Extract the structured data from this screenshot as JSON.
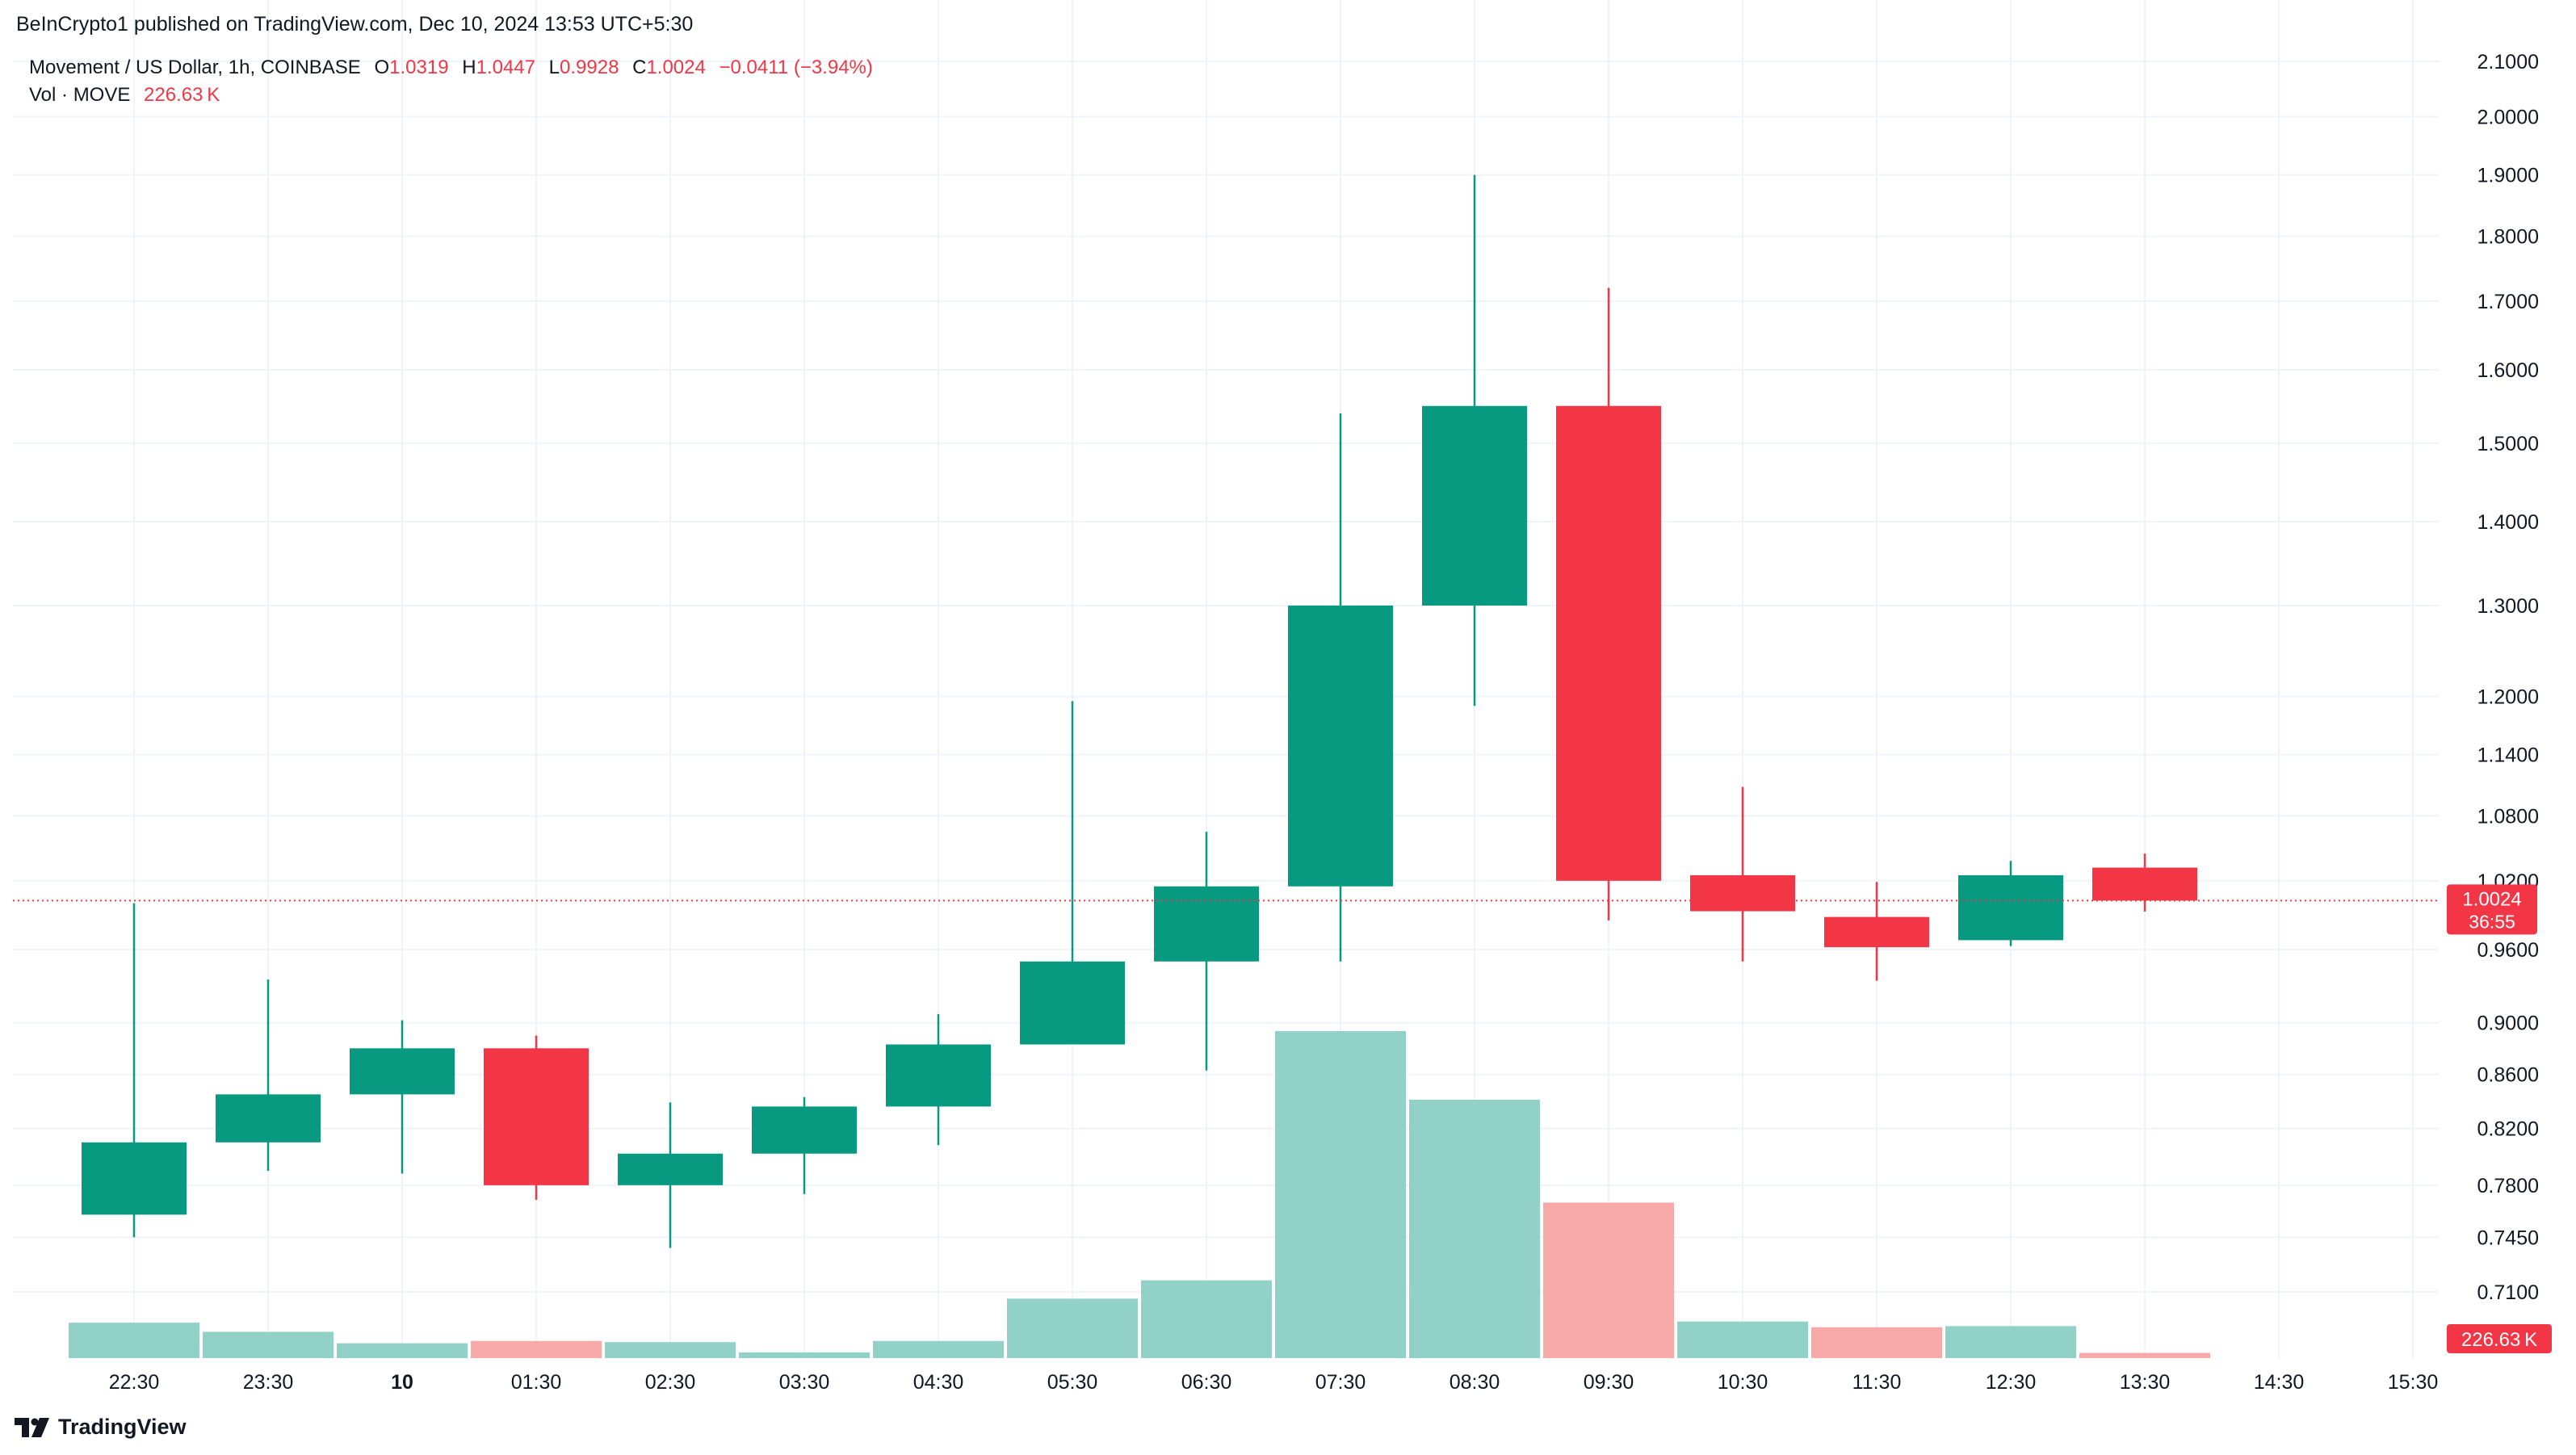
{
  "publisher_line": "BeInCrypto1 published on TradingView.com, Dec 10, 2024 13:53 UTC+5:30",
  "legend": {
    "symbol": "Movement / US Dollar, 1h, COINBASE",
    "o_label": "O",
    "o_value": "1.0319",
    "h_label": "H",
    "h_value": "1.0447",
    "l_label": "L",
    "l_value": "0.9928",
    "c_label": "C",
    "c_value": "1.0024",
    "change": "−0.0411 (−3.94%)",
    "vol_label": "Vol · MOVE",
    "vol_value": "226.63 K"
  },
  "footer": {
    "brand": "TradingView"
  },
  "colors": {
    "up": "#089981",
    "down": "#f23645",
    "vol_up": "#92d1c8",
    "vol_down": "#f7a9a7",
    "grid": "#f0f3fa",
    "text": "#131722"
  },
  "chart_data": {
    "type": "candlestick",
    "symbol": "Movement / US Dollar",
    "interval": "1h",
    "exchange": "COINBASE",
    "y_scale": "log",
    "y_ticks": [
      "2.1000",
      "2.0000",
      "1.9000",
      "1.8000",
      "1.7000",
      "1.6000",
      "1.5000",
      "1.4000",
      "1.3000",
      "1.2000",
      "1.1400",
      "1.0800",
      "1.0200",
      "0.9600",
      "0.9000",
      "0.8600",
      "0.8200",
      "0.7800",
      "0.7450",
      "0.7100"
    ],
    "x_ticks": [
      "22:30",
      "23:30",
      "10",
      "01:30",
      "02:30",
      "03:30",
      "04:30",
      "05:30",
      "06:30",
      "07:30",
      "08:30",
      "09:30",
      "10:30",
      "11:30",
      "12:30",
      "13:30",
      "14:30",
      "15:30"
    ],
    "bold_x_tick": "10",
    "candles": [
      {
        "time": "22:30",
        "open": 0.76,
        "high": 1.0,
        "low": 0.745,
        "close": 0.81
      },
      {
        "time": "23:30",
        "open": 0.81,
        "high": 0.935,
        "low": 0.79,
        "close": 0.845
      },
      {
        "time": "00:30",
        "open": 0.845,
        "high": 0.902,
        "low": 0.788,
        "close": 0.88
      },
      {
        "time": "01:30",
        "open": 0.88,
        "high": 0.89,
        "low": 0.77,
        "close": 0.78
      },
      {
        "time": "02:30",
        "open": 0.78,
        "high": 0.839,
        "low": 0.738,
        "close": 0.802
      },
      {
        "time": "03:30",
        "open": 0.802,
        "high": 0.843,
        "low": 0.774,
        "close": 0.836
      },
      {
        "time": "04:30",
        "open": 0.836,
        "high": 0.907,
        "low": 0.808,
        "close": 0.883
      },
      {
        "time": "05:30",
        "open": 0.883,
        "high": 1.195,
        "low": 0.883,
        "close": 0.95
      },
      {
        "time": "06:30",
        "open": 0.95,
        "high": 1.065,
        "low": 0.863,
        "close": 1.015
      },
      {
        "time": "07:30",
        "open": 1.015,
        "high": 1.54,
        "low": 0.95,
        "close": 1.3
      },
      {
        "time": "08:30",
        "open": 1.3,
        "high": 1.9,
        "low": 1.19,
        "close": 1.55
      },
      {
        "time": "09:30",
        "open": 1.55,
        "high": 1.72,
        "low": 0.985,
        "close": 1.02
      },
      {
        "time": "10:30",
        "open": 1.025,
        "high": 1.108,
        "low": 0.95,
        "close": 0.993
      },
      {
        "time": "11:30",
        "open": 0.988,
        "high": 1.019,
        "low": 0.934,
        "close": 0.962
      },
      {
        "time": "12:30",
        "open": 0.968,
        "high": 1.038,
        "low": 0.963,
        "close": 1.025
      },
      {
        "time": "13:30",
        "open": 1.0319,
        "high": 1.0447,
        "low": 0.9928,
        "close": 1.0024
      }
    ],
    "volume": {
      "max": 14300000,
      "values": [
        {
          "time": "22:30",
          "value": 1550000,
          "dir": "up"
        },
        {
          "time": "23:30",
          "value": 1150000,
          "dir": "up"
        },
        {
          "time": "00:30",
          "value": 650000,
          "dir": "up"
        },
        {
          "time": "01:30",
          "value": 750000,
          "dir": "down"
        },
        {
          "time": "02:30",
          "value": 700000,
          "dir": "up"
        },
        {
          "time": "03:30",
          "value": 250000,
          "dir": "up"
        },
        {
          "time": "04:30",
          "value": 750000,
          "dir": "up"
        },
        {
          "time": "05:30",
          "value": 2600000,
          "dir": "up"
        },
        {
          "time": "06:30",
          "value": 3400000,
          "dir": "up"
        },
        {
          "time": "07:30",
          "value": 14300000,
          "dir": "up"
        },
        {
          "time": "08:30",
          "value": 11300000,
          "dir": "up"
        },
        {
          "time": "09:30",
          "value": 6800000,
          "dir": "down"
        },
        {
          "time": "10:30",
          "value": 1600000,
          "dir": "up"
        },
        {
          "time": "11:30",
          "value": 1350000,
          "dir": "down"
        },
        {
          "time": "12:30",
          "value": 1400000,
          "dir": "up"
        },
        {
          "time": "13:30",
          "value": 226630,
          "dir": "down"
        }
      ]
    },
    "last_price": {
      "value": "1.0024",
      "countdown": "36:55"
    },
    "last_volume_label": "226.63 K"
  }
}
